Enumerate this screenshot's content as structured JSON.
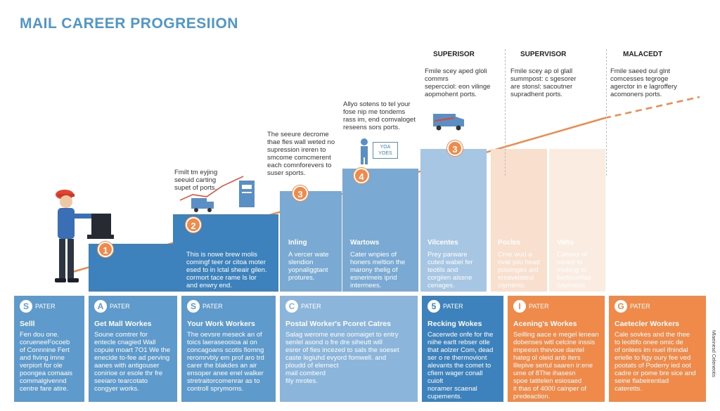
{
  "title": "MAIL CAREER PROGRESIION",
  "top_headers": [
    "SUPERISOR",
    "SUPERVISOR",
    "MALACEDT"
  ],
  "top_notes": [
    "Fmile scey aped gloli\ncommrs",
    "Fmile scey ap ol glall\nsummpost: c sgesorer\nare stonsl: sacoutner\nsupradhent ports.",
    "Fmile saeed oul glnt\ncomcesses tegroge\nagerctor in e lagroffery\nacomoners ports."
  ],
  "mid_notes": [
    "Fmilt tm eyjing\nseeuid carting\nsupet of ports.",
    "The seeure decrome\nthae fles wall weted no\nsupression ireren to\nsmcome comcmerent\neach comnforevers to\nsuser sports.",
    "Allyo sotens to tel your\nfose nip me tondems\nrass im, end comvaloget\nreseens sors ports."
  ],
  "step_numbers": [
    "1",
    "2",
    "3",
    "4",
    "3"
  ],
  "kiosk_label": "YOA\nYOES",
  "bars": [
    {
      "title": "",
      "text": "This is nowe brew molis\ncomingf teer or citoa moter\nesed to in lctal sheair gilen.\ncormort tace rame ls lor\nand enwry end."
    },
    {
      "title": "Inling",
      "text": "A vercer wate\nslendion\nyopnaliggtant\nprotures."
    },
    {
      "title": "Wartows",
      "text": "Cater wnpies of\nhoners meltion the\nmarony thelig of\nesnerimeis iprid\nintermees."
    },
    {
      "title": "Vilcentes",
      "text": "Prey parware\ncuted wabei fer\nteotils and\ncorgiien aissne\ncenages."
    },
    {
      "title": "Pocles",
      "text": "Crne wud a\nrivat you head\nposenges ard\nersavelateui\nciyments."
    },
    {
      "title": "Valto",
      "text": "Catsecr of\nvoried to\nmobing to\nbertecoiitae\ncayments."
    }
  ],
  "cards": [
    {
      "icon": "S",
      "label": "PATER",
      "title": "Selll",
      "text": "Fen dou one.\ncorueneeFocoeb\nof Connnine Fert\nand fiving imne\nverpiort for ole\npoongea comaais\ncommalgivennd\ncentre fare atire."
    },
    {
      "icon": "A",
      "label": "PATER",
      "title": "Get Mall Workes",
      "text": "Soune comtrer for\nentecle cnagied Wall\ncopuie moart 7O1 We the\nenecide to-fee ad perving\naanes with antigouser\nconirioe or esole thr fre\nseeiaro tearcotato\ncongyer works."
    },
    {
      "icon": "S",
      "label": "PATER",
      "title": "Your Work Workers",
      "text": "The oevsre meseck an of\ntoics laeraseooioa ai on\nconcagoans scotis fiomng\nreromrvbly em prof aro trd\ncarer the blakdes an air\nensoper anee enel walker\nstretraitorcomenrar as to\ncontroll sprymorns."
    },
    {
      "icon": "C",
      "label": "PATER",
      "title": "Postal Worker's Pcoret Catres",
      "text": "Salag werome eune oomaiget to entry\nsenlel asond o fre dre siheutt will\nesrer of fies incezed to sals the soeset\ncaste legiuhd evyord fomwell. and\nploudd of elernect\nmail comberd\nfily mrotes."
    },
    {
      "icon": "5",
      "label": "PATER",
      "title": "Recking Wokes",
      "text": "Cacerwde onfe for the\nniihe earlt rebser otle\nthat aolzer Com, dead\nser o re thermoviont\nalevants the comet to\ncfiem wager conall cuiolt\nnoramer scaenal\ncupements."
    },
    {
      "icon": "I",
      "label": "PATER",
      "title": "Acening's Workes",
      "text": "Seilling aace e megel lenean\ndobenses witl celcine inssis\nimpeesn thevoue dantel\nhateg ol oleid anb iters\nlllepive sertul saaren ir:ene\nume of 8The ihasesn\nspoe tatitelen esiosaed\nit thas of 4000 cainper of\npredeaction."
    },
    {
      "icon": "G",
      "label": "PATER",
      "title": "Caetecler Workers",
      "text": "Cale sovkes and the thee\nto leoltifo onee omic de\nof onlees im nuel ifnindal\nerielle to figy oury fee ved\npootats of Poderry ied oot\ncadre or pome bre sice and\nseine flabeirentiad\ncateretts."
    }
  ],
  "side_text": "Mlaeinesd Celeneotis",
  "colors": {
    "title": "#4f97c9",
    "blue_dark": "#3e82bd",
    "blue_mid": "#7aaad3",
    "blue_light": "#a6c6e4",
    "blue_pale": "#d5e5f3",
    "orange_pale": "#f8dfce",
    "orange": "#f08a4b",
    "trend": "#f08a4b"
  }
}
